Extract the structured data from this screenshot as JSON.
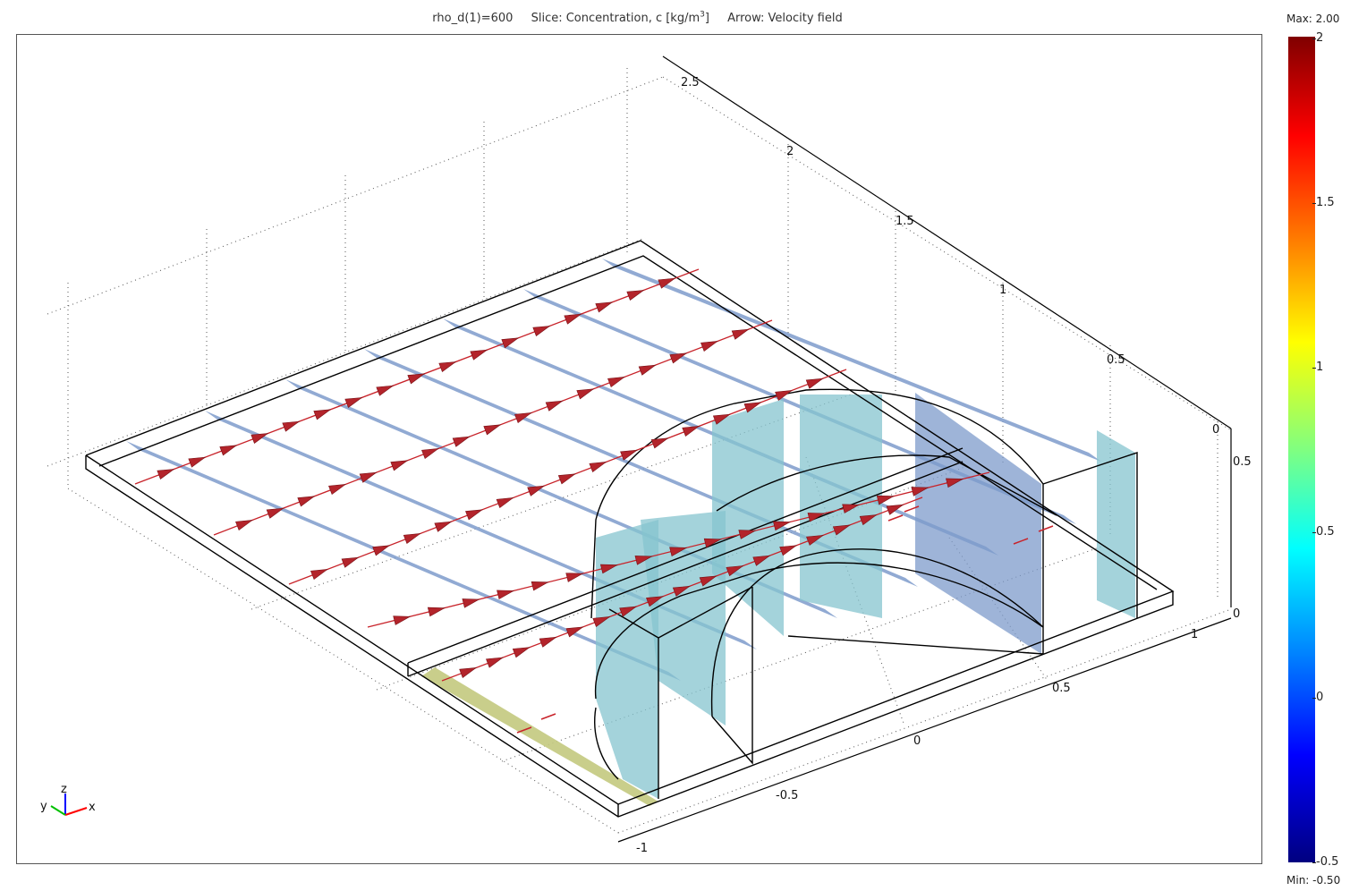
{
  "title": {
    "param": "rho_d(1)=600",
    "slice_prefix": "Slice: Concentration, c [kg/m",
    "slice_exp": "3",
    "slice_suffix": "]",
    "arrow": "Arrow: Velocity field"
  },
  "colorbar": {
    "max_label": "Max: 2.00",
    "min_label": "Min: -0.50",
    "ticks": [
      "2",
      "1.5",
      "1",
      "0.5",
      "0",
      "-0.5"
    ],
    "colors": [
      "#800000",
      "#ff0000",
      "#ff8000",
      "#ffff00",
      "#80ff80",
      "#00ffff",
      "#0080ff",
      "#0000ff",
      "#000080"
    ]
  },
  "axes": {
    "x_ticks": [
      "-1",
      "-0.5",
      "0",
      "0.5",
      "1"
    ],
    "y_ticks": [
      "2.5",
      "2",
      "1.5",
      "1",
      "0.5",
      "0"
    ],
    "z_ticks": [
      "0.5",
      "0"
    ],
    "triad": {
      "x": "x",
      "y": "y",
      "z": "z"
    }
  },
  "colors": {
    "slice_blue": "#7e9bcb",
    "slice_cyan": "#86c4cf",
    "slice_yellow": "#c3c97e",
    "arrow_red": "#c8232a",
    "edge": "#000000",
    "grid": "#555555"
  }
}
